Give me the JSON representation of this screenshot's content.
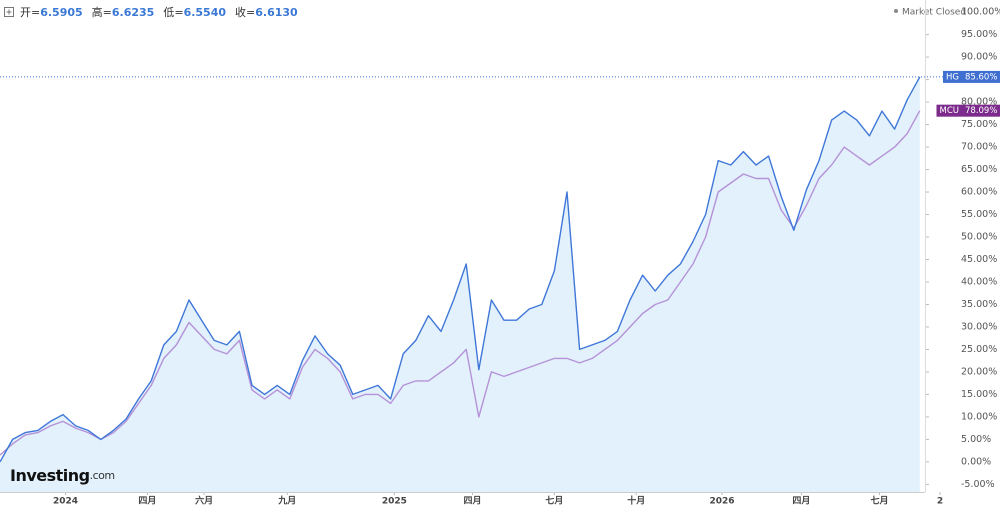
{
  "chart_data": {
    "type": "line",
    "header": [
      {
        "label": "开=",
        "value": "6.5905"
      },
      {
        "label": "高=",
        "value": "6.6235"
      },
      {
        "label": "低=",
        "value": "6.5540"
      },
      {
        "label": "收=",
        "value": "6.6130"
      }
    ],
    "status": "Market Closed",
    "logo": {
      "brand": "Investing",
      "suffix": ".com"
    },
    "xlim": [
      0,
      75
    ],
    "xticks": [
      {
        "value": 5.2,
        "label": "2024"
      },
      {
        "value": 11.7,
        "label": "四月"
      },
      {
        "value": 16.2,
        "label": "六月"
      },
      {
        "value": 22.8,
        "label": "九月"
      },
      {
        "value": 31.3,
        "label": "2025"
      },
      {
        "value": 37.5,
        "label": "四月"
      },
      {
        "value": 44,
        "label": "七月"
      },
      {
        "value": 50.5,
        "label": "十月"
      },
      {
        "value": 57.3,
        "label": "2026"
      },
      {
        "value": 63.6,
        "label": "四月"
      },
      {
        "value": 69.8,
        "label": "七月"
      },
      {
        "value": 74.6,
        "label": "2"
      }
    ],
    "ylim": [
      -6.7,
      102.7
    ],
    "yticks": [
      {
        "value": 100,
        "label": "100.00%"
      },
      {
        "value": 95,
        "label": "95.00%"
      },
      {
        "value": 90,
        "label": "90.00%"
      },
      {
        "value": 85,
        "label": "85.00%"
      },
      {
        "value": 80,
        "label": "80.00%"
      },
      {
        "value": 75,
        "label": "75.00%"
      },
      {
        "value": 70,
        "label": "70.00%"
      },
      {
        "value": 65,
        "label": "65.00%"
      },
      {
        "value": 60,
        "label": "60.00%"
      },
      {
        "value": 55,
        "label": "55.00%"
      },
      {
        "value": 50,
        "label": "50.00%"
      },
      {
        "value": 45,
        "label": "45.00%"
      },
      {
        "value": 40,
        "label": "40.00%"
      },
      {
        "value": 35,
        "label": "35.00%"
      },
      {
        "value": 30,
        "label": "30.00%"
      },
      {
        "value": 25,
        "label": "25.00%"
      },
      {
        "value": 20,
        "label": "20.00%"
      },
      {
        "value": 15,
        "label": "15.00%"
      },
      {
        "value": 10,
        "label": "10.00%"
      },
      {
        "value": 5,
        "label": "5.00%"
      },
      {
        "value": 0,
        "label": "0.00%"
      },
      {
        "value": -5,
        "label": "-5.00%"
      }
    ],
    "series": [
      {
        "name": "HG",
        "color": "#3f77d8",
        "fill": "#e2f1fb",
        "tag_color": "#3f6fd0",
        "last_value_label": "85.60%",
        "values": [
          0,
          5,
          6.5,
          7,
          9,
          10.5,
          8,
          7,
          5,
          7,
          9.5,
          14,
          18,
          26,
          29,
          36,
          31.5,
          27,
          26,
          29,
          17,
          15,
          17,
          15,
          22.5,
          28,
          24,
          21.5,
          15,
          16,
          17,
          14,
          24,
          27,
          32.5,
          29,
          36,
          44,
          20.5,
          36,
          31.5,
          31.5,
          34,
          35,
          42.5,
          60,
          25,
          26,
          27,
          29,
          36,
          41.5,
          38,
          41.5,
          44,
          49,
          55,
          67,
          66,
          69,
          66,
          68,
          59,
          51.5,
          60.5,
          67,
          76,
          78,
          76,
          72.5,
          78,
          74,
          80.5,
          85.6
        ]
      },
      {
        "name": "MCU",
        "color": "#b592d8",
        "tag_color": "#7c2a8c",
        "last_value_label": "78.09%",
        "values": [
          1.5,
          4,
          6,
          6.5,
          8,
          9,
          7.5,
          6.5,
          5,
          6.5,
          9,
          13,
          17,
          23,
          26,
          31,
          28,
          25,
          24,
          27,
          16,
          14,
          16,
          14,
          21,
          25,
          23,
          20,
          14,
          15,
          15,
          13,
          17,
          18,
          18,
          20,
          22,
          25,
          10,
          20,
          19,
          20,
          21,
          22,
          23,
          23,
          22,
          23,
          25,
          27,
          30,
          33,
          35,
          36,
          40,
          44,
          50,
          60,
          62,
          64,
          63,
          63,
          56,
          52,
          57,
          63,
          66,
          70,
          68,
          66,
          68,
          70,
          73,
          78.09
        ]
      }
    ]
  }
}
